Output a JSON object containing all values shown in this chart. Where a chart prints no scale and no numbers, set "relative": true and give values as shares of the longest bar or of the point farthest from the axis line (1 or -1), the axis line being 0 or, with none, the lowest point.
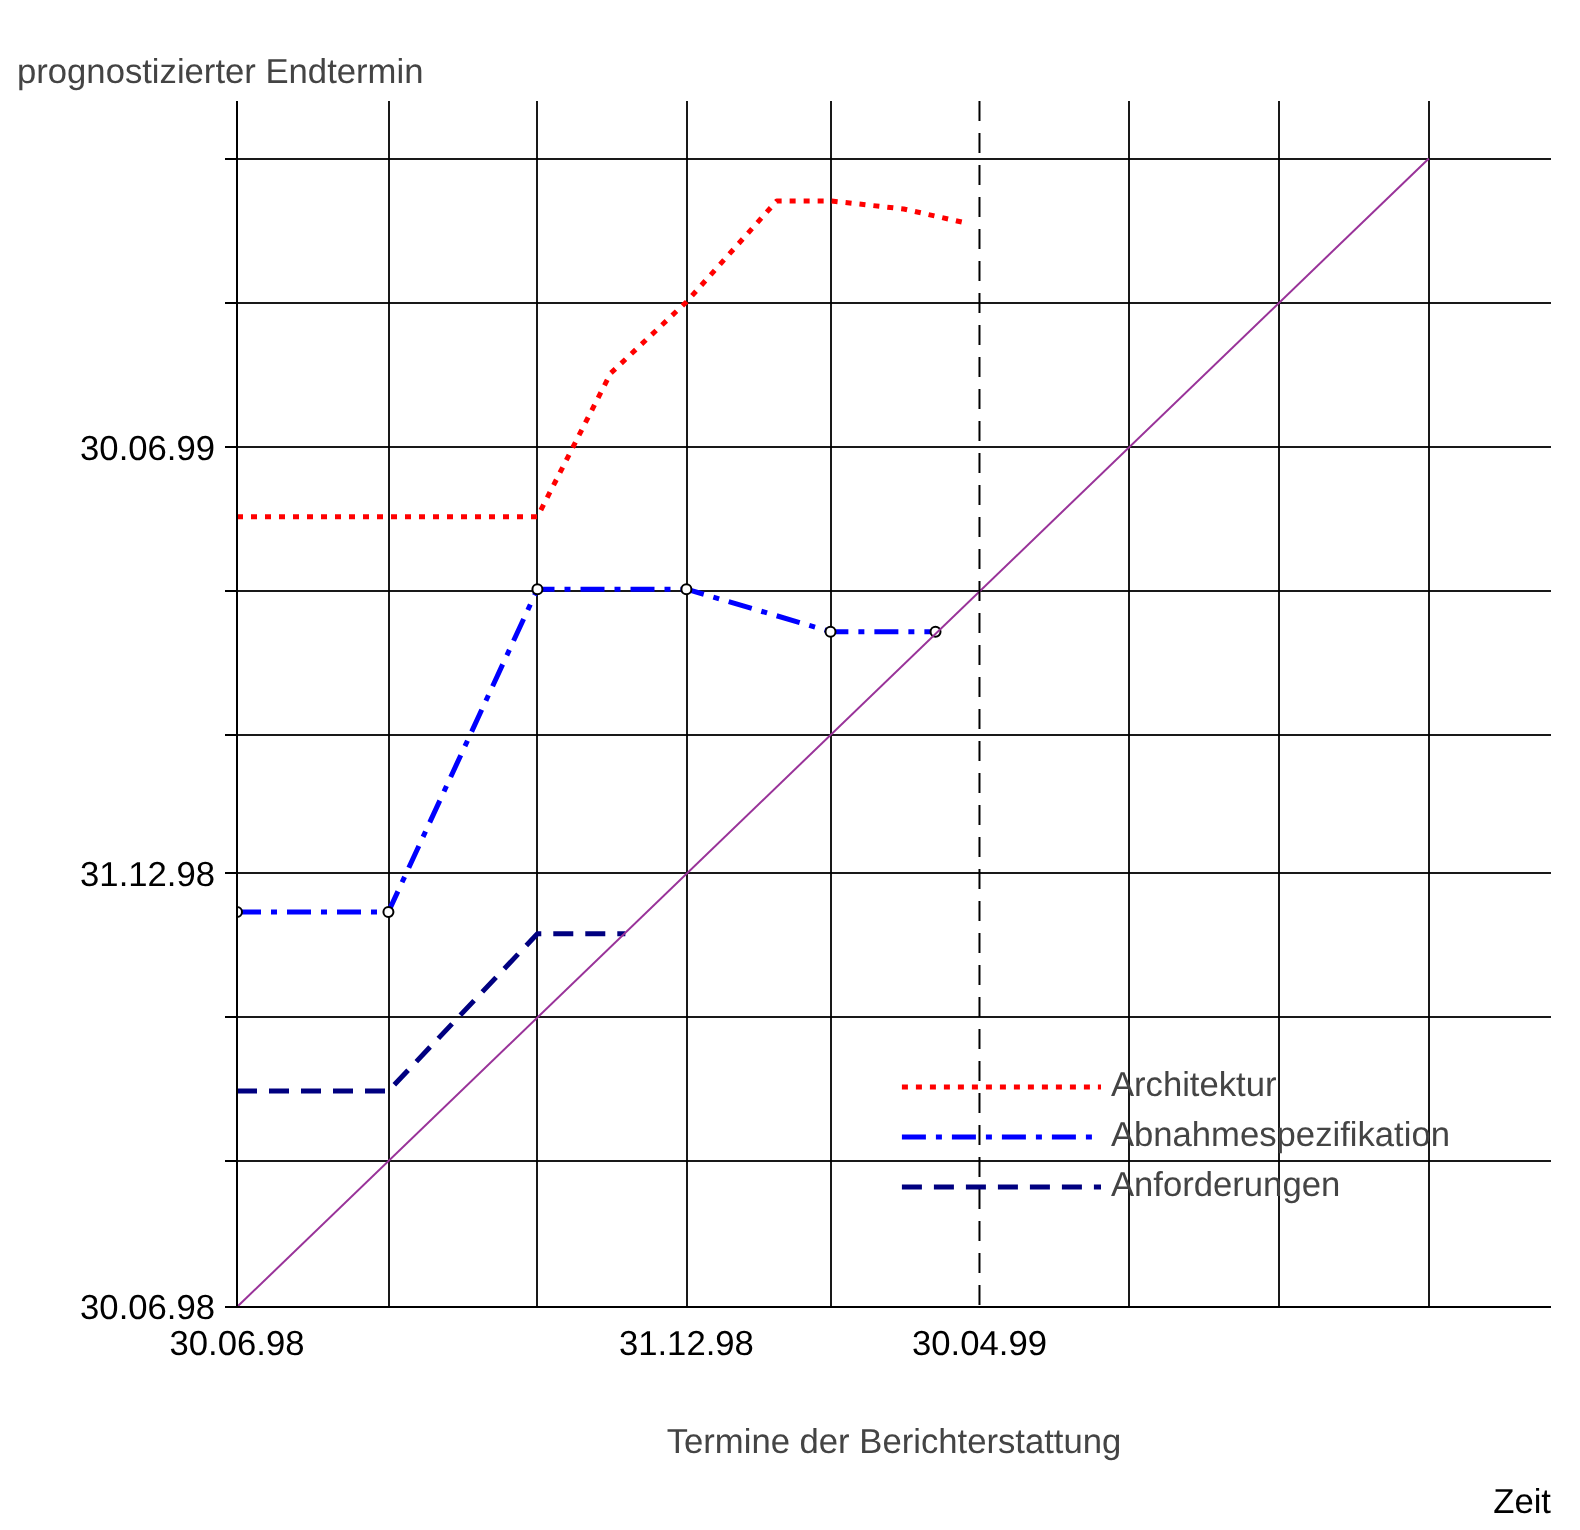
{
  "chart_data": {
    "type": "line",
    "relative": true,
    "ylabel": "prognostizierter Endtermin",
    "xlabel": "Termine der Berichterstattung",
    "annotations": [
      "Zeit",
      "30.06.98",
      "31.12.98",
      "30.06.99"
    ],
    "xlim": [
      "1998-06-30",
      "1999-12-20"
    ],
    "xticks": [
      {
        "value": "1998-06-30",
        "label": "30.06.98"
      },
      {
        "value": "1998-08-31",
        "label": null
      },
      {
        "value": "1998-10-31",
        "label": null
      },
      {
        "value": "1998-12-31",
        "label": "31.12.98"
      },
      {
        "value": "1999-02-28",
        "label": null
      },
      {
        "value": "1999-04-30",
        "label": "30.04.99"
      },
      {
        "value": "1999-06-30",
        "label": null
      },
      {
        "value": "1999-08-31",
        "label": null
      },
      {
        "value": "1999-10-31",
        "label": null
      }
    ],
    "grid": true,
    "legend": "bottom right",
    "ref_lines": [
      {
        "axis": "x",
        "value": "1999-04-30",
        "label": null,
        "color": "#000000",
        "line_style": "dashed"
      }
    ],
    "series": [
      {
        "name": "Architektur",
        "color": "#ff0000",
        "line_style": "dotted",
        "marker": "none",
        "x": [
          "1998-06-30",
          "1998-10-31",
          "1998-11-30",
          "1998-12-31",
          "1999-02-06",
          "1999-02-28",
          "1999-03-30",
          "1999-04-24"
        ],
        "values": [
          0.688,
          0.688,
          0.813,
          0.875,
          0.963,
          0.963,
          0.956,
          0.944
        ]
      },
      {
        "name": "Abnahmespezifikation",
        "color": "#0000ff",
        "line_style": "dashdot",
        "marker": "circle",
        "x": [
          "1998-06-30",
          "1998-08-31",
          "1998-10-31",
          "1998-12-31",
          "1999-02-28",
          "1999-04-12"
        ],
        "values": [
          0.344,
          0.344,
          0.625,
          0.625,
          0.588,
          0.588
        ]
      },
      {
        "name": "Anforderungen",
        "color": "#000080",
        "line_style": "dashed",
        "marker": "none",
        "x": [
          "1998-06-30",
          "1998-08-31",
          "1998-10-31",
          "1998-12-06"
        ],
        "values": [
          0.188,
          0.188,
          0.325,
          0.325
        ]
      },
      {
        "color": "#993399",
        "line_style": "solid",
        "marker": "none",
        "x": [
          "1998-06-30",
          "1999-10-31"
        ],
        "values": [
          0,
          1
        ]
      }
    ]
  }
}
